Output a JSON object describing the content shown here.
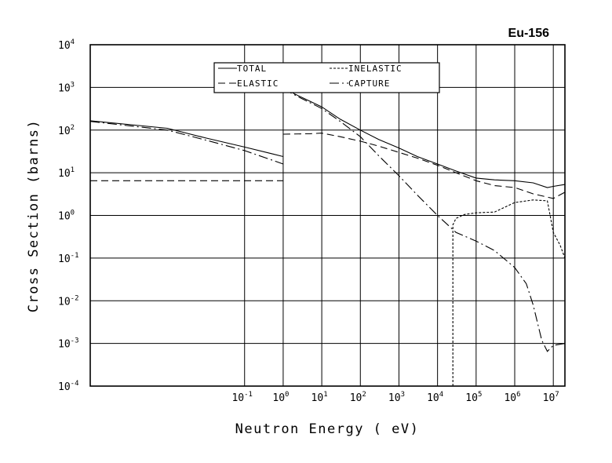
{
  "chart_data": {
    "type": "line",
    "title": "Eu-156",
    "xlabel": "Neutron Energy ( eV)",
    "ylabel": "Cross Section (barns)",
    "x_scale": "log",
    "y_scale": "log",
    "xlim": [
      1e-05,
      20000000
    ],
    "ylim": [
      0.0001,
      10000
    ],
    "grid": true,
    "legend_position": "top-center",
    "x_ticks": [
      {
        "base": "10",
        "exp": "-1",
        "value": 0.1
      },
      {
        "base": "10",
        "exp": "0",
        "value": 1
      },
      {
        "base": "10",
        "exp": "1",
        "value": 10
      },
      {
        "base": "10",
        "exp": "2",
        "value": 100
      },
      {
        "base": "10",
        "exp": "3",
        "value": 1000
      },
      {
        "base": "10",
        "exp": "4",
        "value": 10000
      },
      {
        "base": "10",
        "exp": "5",
        "value": 100000
      },
      {
        "base": "10",
        "exp": "6",
        "value": 1000000
      },
      {
        "base": "10",
        "exp": "7",
        "value": 10000000
      }
    ],
    "y_ticks": [
      {
        "base": "10",
        "exp": "-4",
        "value": 0.0001
      },
      {
        "base": "10",
        "exp": "-3",
        "value": 0.001
      },
      {
        "base": "10",
        "exp": "-2",
        "value": 0.01
      },
      {
        "base": "10",
        "exp": "-1",
        "value": 0.1
      },
      {
        "base": "10",
        "exp": "0",
        "value": 1
      },
      {
        "base": "10",
        "exp": "1",
        "value": 10
      },
      {
        "base": "10",
        "exp": "2",
        "value": 100
      },
      {
        "base": "10",
        "exp": "3",
        "value": 1000
      },
      {
        "base": "10",
        "exp": "4",
        "value": 10000
      }
    ],
    "series": [
      {
        "name": "TOTAL",
        "style": "solid",
        "segments": [
          {
            "x": [
              1e-05,
              0.001,
              0.01,
              0.1,
              0.5,
              1
            ],
            "y": [
              165,
              110,
              65,
              40,
              28,
              24
            ]
          },
          {
            "x": [
              1,
              2,
              10,
              30,
              100,
              300,
              1000,
              3000,
              10000,
              30000,
              100000,
              300000,
              1000000,
              3000000,
              7000000,
              10000000,
              20000000
            ],
            "y": [
              1000,
              700,
              350,
              180,
              100,
              60,
              38,
              24,
              16,
              11,
              7.5,
              6.8,
              6.5,
              5.8,
              4.5,
              4.8,
              5.3
            ]
          }
        ]
      },
      {
        "name": "ELASTIC",
        "style": "dashed",
        "segments": [
          {
            "x": [
              1e-05,
              1
            ],
            "y": [
              6.5,
              6.5
            ]
          },
          {
            "x": [
              1,
              5,
              10,
              30,
              100,
              300,
              1000,
              3000,
              10000,
              30000,
              100000,
              300000,
              1000000,
              3000000,
              10000000,
              20000000
            ],
            "y": [
              80,
              82,
              85,
              70,
              55,
              42,
              30,
              22,
              15,
              10,
              6.5,
              5,
              4.5,
              3.2,
              2.5,
              3.5
            ]
          }
        ]
      },
      {
        "name": "INELASTIC",
        "style": "dotted",
        "segments": [
          {
            "x": [
              25000,
              25000,
              30000,
              50000,
              100000,
              300000,
              1000000,
              3000000,
              7000000,
              10000000,
              15000000,
              20000000
            ],
            "y": [
              0.0001,
              0.6,
              0.85,
              1.05,
              1.15,
              1.2,
              2.0,
              2.3,
              2.2,
              0.4,
              0.2,
              0.1
            ]
          }
        ]
      },
      {
        "name": "CAPTURE",
        "style": "dashdot",
        "segments": [
          {
            "x": [
              1e-05,
              0.001,
              0.01,
              0.1,
              0.5,
              1
            ],
            "y": [
              160,
              100,
              58,
              33,
              20,
              16
            ]
          },
          {
            "x": [
              1,
              3,
              10,
              30,
              100,
              300,
              1000,
              3000,
              10000,
              30000,
              100000,
              300000,
              1000000,
              2000000,
              3000000,
              5000000,
              7000000,
              10000000,
              20000000
            ],
            "y": [
              920,
              550,
              320,
              160,
              70,
              25,
              8.5,
              3,
              1.0,
              0.4,
              0.25,
              0.15,
              0.06,
              0.025,
              0.008,
              0.0012,
              0.00065,
              0.0009,
              0.001
            ]
          }
        ]
      }
    ]
  }
}
